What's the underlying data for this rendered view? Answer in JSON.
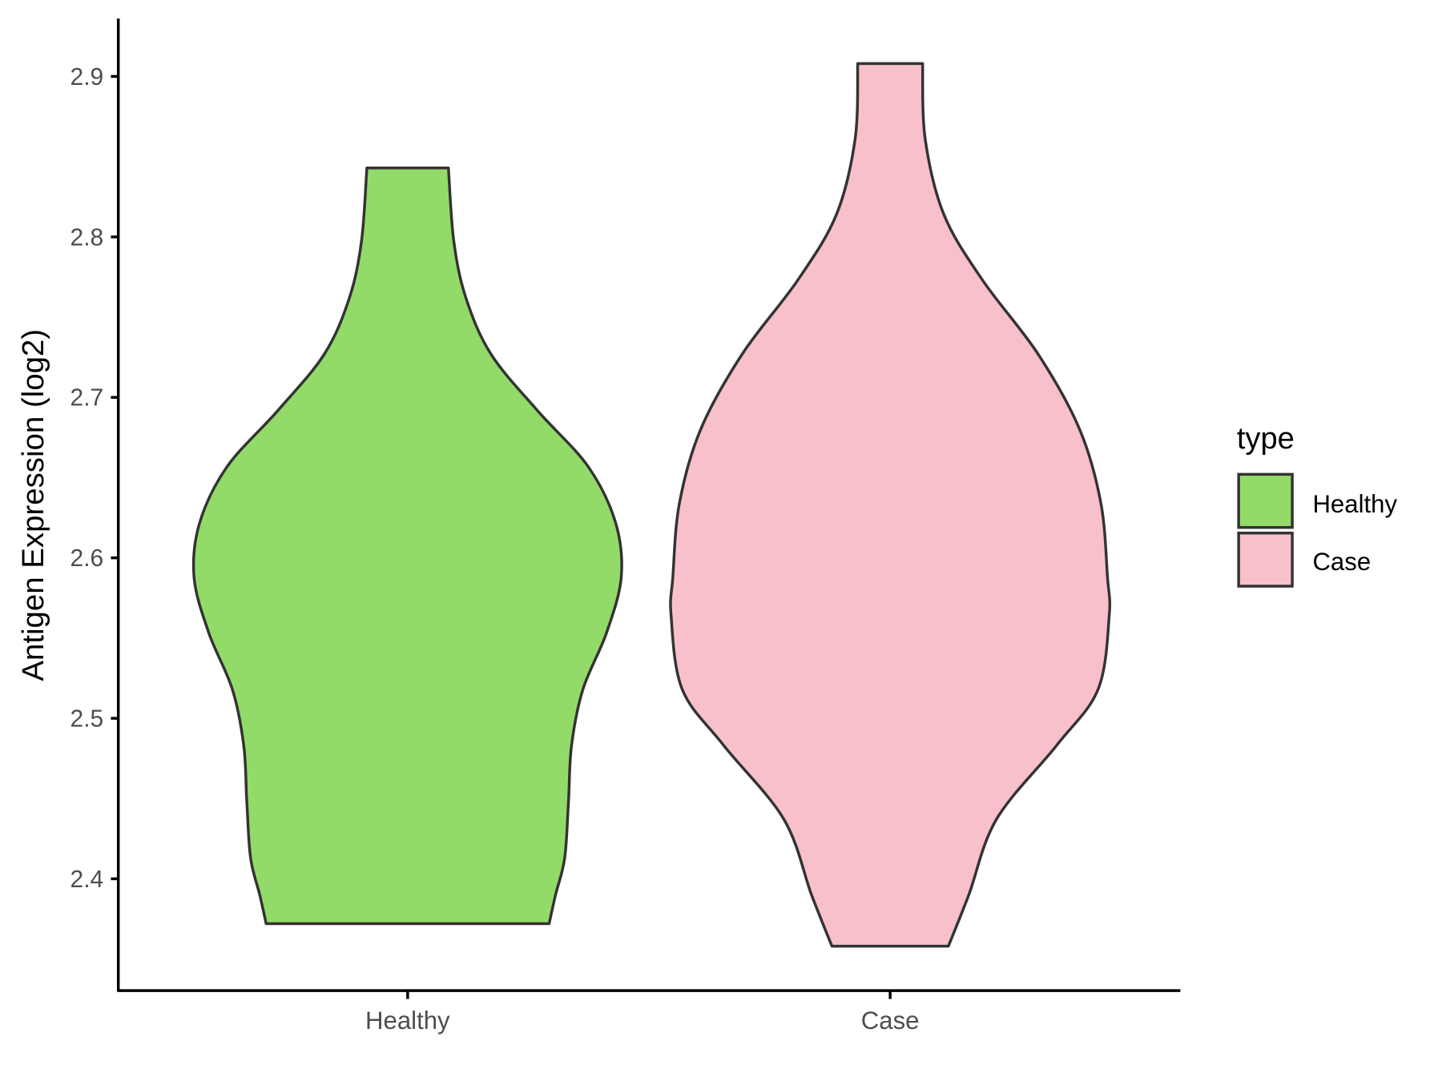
{
  "chart_data": {
    "type": "violin",
    "title": "",
    "xlabel": "",
    "ylabel": "Antigen Expression (log2)",
    "ylim": [
      2.33,
      2.935
    ],
    "yticks": [
      2.4,
      2.5,
      2.6,
      2.7,
      2.8,
      2.9
    ],
    "ytick_labels": [
      "2.4",
      "2.5",
      "2.6",
      "2.7",
      "2.8",
      "2.9"
    ],
    "categories": [
      "Healthy",
      "Case"
    ],
    "grid": false,
    "legend": {
      "title": "type",
      "placement": "right",
      "entries": [
        {
          "label": "Healthy",
          "color": "#93DB69"
        },
        {
          "label": "Case",
          "color": "#F8C0CB"
        }
      ]
    },
    "outline_color": "#333333",
    "series": [
      {
        "category": "Healthy",
        "color": "#93DB69",
        "min": 2.372,
        "max": 2.843,
        "density_profile": [
          [
            2.843,
            0.186
          ],
          [
            2.797,
            0.211
          ],
          [
            2.762,
            0.266
          ],
          [
            2.727,
            0.38
          ],
          [
            2.692,
            0.591
          ],
          [
            2.657,
            0.823
          ],
          [
            2.622,
            0.949
          ],
          [
            2.588,
            0.975
          ],
          [
            2.553,
            0.907
          ],
          [
            2.518,
            0.8
          ],
          [
            2.483,
            0.748
          ],
          [
            2.448,
            0.734
          ],
          [
            2.413,
            0.717
          ],
          [
            2.39,
            0.675
          ],
          [
            2.372,
            0.646
          ]
        ]
      },
      {
        "category": "Case",
        "color": "#F8C0CB",
        "min": 2.358,
        "max": 2.908,
        "density_profile": [
          [
            2.908,
            0.148
          ],
          [
            2.861,
            0.16
          ],
          [
            2.814,
            0.245
          ],
          [
            2.773,
            0.422
          ],
          [
            2.727,
            0.675
          ],
          [
            2.68,
            0.865
          ],
          [
            2.634,
            0.962
          ],
          [
            2.588,
            0.992
          ],
          [
            2.564,
            1.0
          ],
          [
            2.518,
            0.949
          ],
          [
            2.483,
            0.759
          ],
          [
            2.437,
            0.485
          ],
          [
            2.39,
            0.359
          ],
          [
            2.358,
            0.266
          ]
        ]
      }
    ]
  }
}
